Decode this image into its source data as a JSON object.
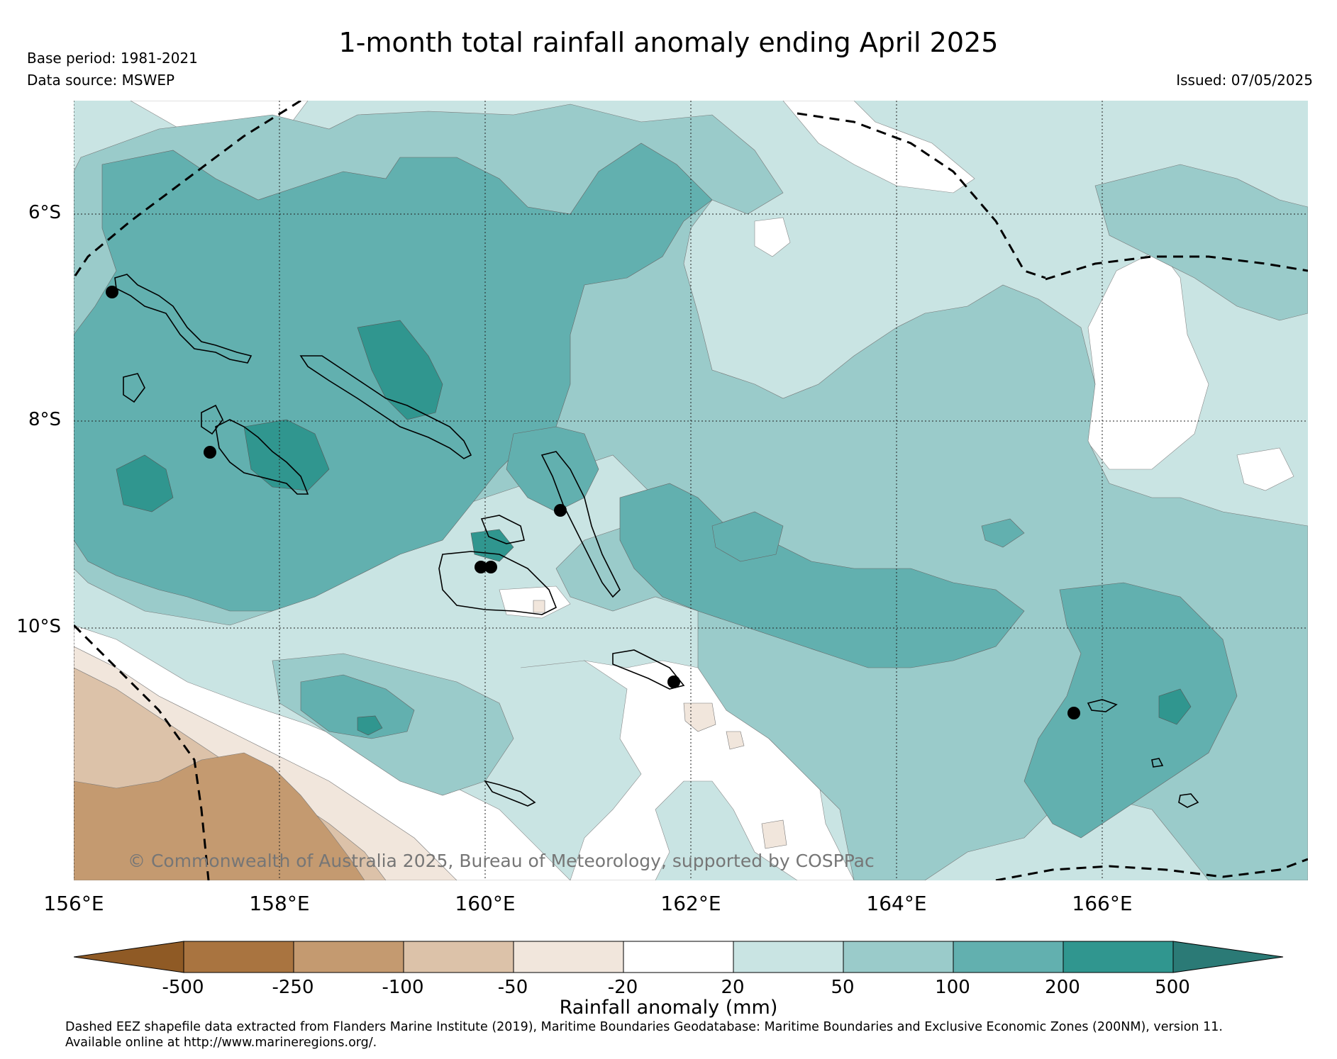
{
  "title": "1-month total rainfall anomaly ending April 2025",
  "base_period": "Base period: 1981-2021",
  "data_source": "Data source: MSWEP",
  "issued": "Issued: 07/05/2025",
  "copyright": "© Commonwealth of Australia 2025, Bureau of Meteorology, supported by COSPPac",
  "latitude_labels": [
    "6°S",
    "8°S",
    "10°S"
  ],
  "longitude_labels": [
    "156°E",
    "158°E",
    "160°E",
    "162°E",
    "164°E",
    "166°E"
  ],
  "colorbar": {
    "title": "Rainfall anomaly (mm)",
    "ticks": [
      "-500",
      "-250",
      "-100",
      "-50",
      "-20",
      "20",
      "50",
      "100",
      "200",
      "500"
    ],
    "colors": [
      "#8f5a25",
      "#a97440",
      "#c49a70",
      "#dcc2a9",
      "#f1e6dc",
      "#ffffff",
      "#c9e4e3",
      "#9acbca",
      "#62b0af",
      "#30968f",
      "#2b7a76"
    ]
  },
  "footnote": {
    "line1": "Dashed EEZ shapefile data extracted from Flanders Marine Institute (2019), Maritime Boundaries Geodatabase: Maritime Boundaries and Exclusive Economic Zones (200NM), version 11.",
    "line2": "Available online at http://www.marineregions.org/."
  }
}
